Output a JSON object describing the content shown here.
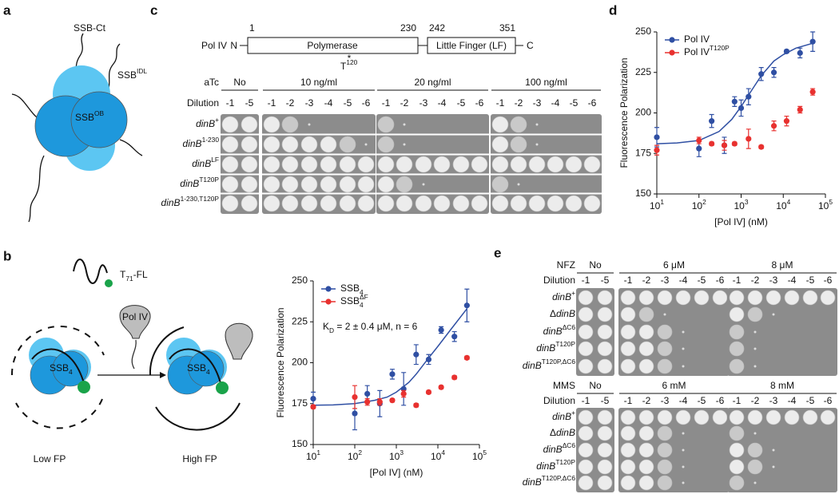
{
  "panel_a": {
    "label": "a",
    "ssb_ct": "SSB-Ct",
    "ssb_idl": {
      "text": "SSB",
      "sup": "IDL"
    },
    "ssb_ob": {
      "text": "SSB",
      "sup": "OB"
    }
  },
  "panel_b": {
    "label": "b",
    "probe": {
      "text": "T",
      "sub": "71",
      "rest": "-FL"
    },
    "pol": "Pol IV",
    "ssb_left": {
      "text": "SSB",
      "sub": "4"
    },
    "ssb_right": {
      "text": "SSB",
      "sub": "4"
    },
    "low": "Low FP",
    "high": "High FP"
  },
  "panel_c": {
    "label": "c",
    "protein": "Pol IV",
    "n_term": "N",
    "c_term": "C",
    "positions": [
      "1",
      "230",
      "242",
      "351"
    ],
    "domains": [
      "Polymerase",
      "Little Finger (LF)"
    ],
    "mutation": {
      "star": "*",
      "text": "T",
      "sup": "120"
    },
    "table": {
      "treatment": "aTc",
      "dilution_label": "Dilution",
      "conditions": [
        "No",
        "10 ng/ml",
        "20 ng/ml",
        "100 ng/ml"
      ],
      "dilutions": [
        [
          "-1",
          "-5"
        ],
        [
          "-1",
          "-2",
          "-3",
          "-4",
          "-5",
          "-6"
        ],
        [
          "-1",
          "-2",
          "-3",
          "-4",
          "-5",
          "-6"
        ],
        [
          "-1",
          "-2",
          "-3",
          "-4",
          "-5",
          "-6"
        ]
      ],
      "strains": [
        {
          "text": "dinB",
          "sup": "+"
        },
        {
          "text": "dinB",
          "sup": "1-230"
        },
        {
          "text": "dinB",
          "sup": "LF"
        },
        {
          "text": "dinB",
          "sup": "T120P"
        },
        {
          "text": "dinB",
          "sup": "1-230,T120P"
        }
      ]
    }
  },
  "panel_d": {
    "label": "d"
  },
  "panel_e": {
    "label": "e",
    "blocks": [
      {
        "treatment": "NFZ",
        "dilution_label": "Dilution",
        "conditions": [
          "No",
          "6 μM",
          "8 μM"
        ],
        "dilutions": [
          [
            "-1",
            "-5"
          ],
          [
            "-1",
            "-2",
            "-3",
            "-4",
            "-5",
            "-6"
          ],
          [
            "-1",
            "-2",
            "-3",
            "-4",
            "-5",
            "-6"
          ]
        ],
        "strains": [
          {
            "text": "dinB",
            "sup": "+"
          },
          {
            "pre": "Δ",
            "text": "dinB"
          },
          {
            "text": "dinB",
            "sup": "ΔC6"
          },
          {
            "text": "dinB",
            "sup": "T120P"
          },
          {
            "text": "dinB",
            "sup": "T120P,ΔC6"
          }
        ]
      },
      {
        "treatment": "MMS",
        "dilution_label": "Dilution",
        "conditions": [
          "No",
          "6 mM",
          "8 mM"
        ],
        "dilutions": [
          [
            "-1",
            "-5"
          ],
          [
            "-1",
            "-2",
            "-3",
            "-4",
            "-5",
            "-6"
          ],
          [
            "-1",
            "-2",
            "-3",
            "-4",
            "-5",
            "-6"
          ]
        ],
        "strains": [
          {
            "text": "dinB",
            "sup": "+"
          },
          {
            "pre": "Δ",
            "text": "dinB"
          },
          {
            "text": "dinB",
            "sup": "ΔC6"
          },
          {
            "text": "dinB",
            "sup": "T120P"
          },
          {
            "text": "dinB",
            "sup": "T120P,ΔC6"
          }
        ]
      }
    ]
  },
  "chart_data": [
    {
      "type": "scatter",
      "x_label": "[Pol IV] (nM)",
      "y_label": "Fluorescence Polarization",
      "log_x": true,
      "xlim": [
        10,
        100000
      ],
      "ylim": [
        150,
        250
      ],
      "xticks": [
        {
          "value": 10,
          "label": "10",
          "exponent": "1"
        },
        {
          "value": 100,
          "label": "10",
          "exponent": "2"
        },
        {
          "value": 1000,
          "label": "10",
          "exponent": "3"
        },
        {
          "value": 10000,
          "label": "10",
          "exponent": "4"
        },
        {
          "value": 100000,
          "label": "10",
          "exponent": "5"
        }
      ],
      "yticks": [
        150,
        175,
        200,
        225,
        250
      ],
      "legend": "upper left",
      "annotation": {
        "text": "K",
        "sub": "D",
        "rest": " = 2 ± 0.4 μM, n = 6"
      },
      "series": [
        {
          "name": "SSB",
          "name_sub": "4",
          "color": "#2f4fa3",
          "x": [
            10,
            100,
            200,
            400,
            800,
            1500,
            3000,
            6000,
            12000,
            25000,
            50000
          ],
          "values": [
            178,
            169,
            181,
            175,
            193,
            184,
            205,
            202,
            220,
            216,
            235
          ],
          "errors": [
            4,
            10,
            5,
            8,
            3,
            10,
            6,
            3,
            2,
            3,
            10
          ],
          "fit": {
            "x": [
              10,
              30,
              100,
              300,
              600,
              1000,
              2000,
              3000,
              6000,
              10000,
              20000,
              50000
            ],
            "values": [
              174,
              174.2,
              175,
              177,
              179,
              182,
              188,
              193,
              203,
              210,
              220,
              233
            ]
          }
        },
        {
          "name": "SSB",
          "name_sup": "ΔF",
          "name_sub": "4",
          "color": "#e8312f",
          "x": [
            10,
            100,
            200,
            400,
            800,
            1500,
            3000,
            6000,
            12000,
            25000,
            50000
          ],
          "values": [
            173,
            179,
            176,
            176,
            177,
            181,
            174,
            182,
            185,
            191,
            203
          ],
          "errors": [
            1,
            7,
            2,
            2,
            1,
            2,
            1,
            1,
            1,
            1,
            1
          ]
        }
      ]
    },
    {
      "type": "scatter",
      "x_label": "[Pol IV] (nM)",
      "y_label": "Fluorescence Polarization",
      "log_x": true,
      "xlim": [
        10,
        100000
      ],
      "ylim": [
        150,
        250
      ],
      "xticks": [
        {
          "value": 10,
          "label": "10",
          "exponent": "1"
        },
        {
          "value": 100,
          "label": "10",
          "exponent": "2"
        },
        {
          "value": 1000,
          "label": "10",
          "exponent": "3"
        },
        {
          "value": 10000,
          "label": "10",
          "exponent": "4"
        },
        {
          "value": 100000,
          "label": "10",
          "exponent": "5"
        }
      ],
      "yticks": [
        150,
        175,
        200,
        225,
        250
      ],
      "legend": "upper left",
      "series": [
        {
          "name": "Pol IV",
          "color": "#2f4fa3",
          "x": [
            10,
            100,
            200,
            400,
            700,
            1000,
            1500,
            3000,
            6000,
            12000,
            25000,
            50000
          ],
          "values": [
            185,
            178,
            195,
            180,
            207,
            203,
            210,
            224,
            225,
            238,
            237,
            244
          ],
          "errors": [
            6,
            5,
            4,
            5,
            3,
            5,
            5,
            4,
            3,
            1,
            3,
            6
          ],
          "fit": {
            "x": [
              10,
              30,
              100,
              300,
              600,
              1000,
              2000,
              3000,
              6000,
              10000,
              20000,
              50000
            ],
            "values": [
              181,
              181.5,
              183,
              188.5,
              196,
              204,
              216,
              223,
              232,
              236,
              240,
              243
            ]
          }
        },
        {
          "name": "Pol IV",
          "name_sup": "T120P",
          "color": "#e8312f",
          "x": [
            10,
            100,
            200,
            400,
            700,
            1500,
            3000,
            6000,
            12000,
            25000,
            50000
          ],
          "values": [
            177,
            183,
            181,
            180,
            181,
            184,
            179,
            192,
            195,
            202,
            213
          ],
          "errors": [
            3,
            2,
            1,
            3,
            1,
            6,
            1,
            3,
            3,
            2,
            2
          ]
        }
      ]
    }
  ]
}
